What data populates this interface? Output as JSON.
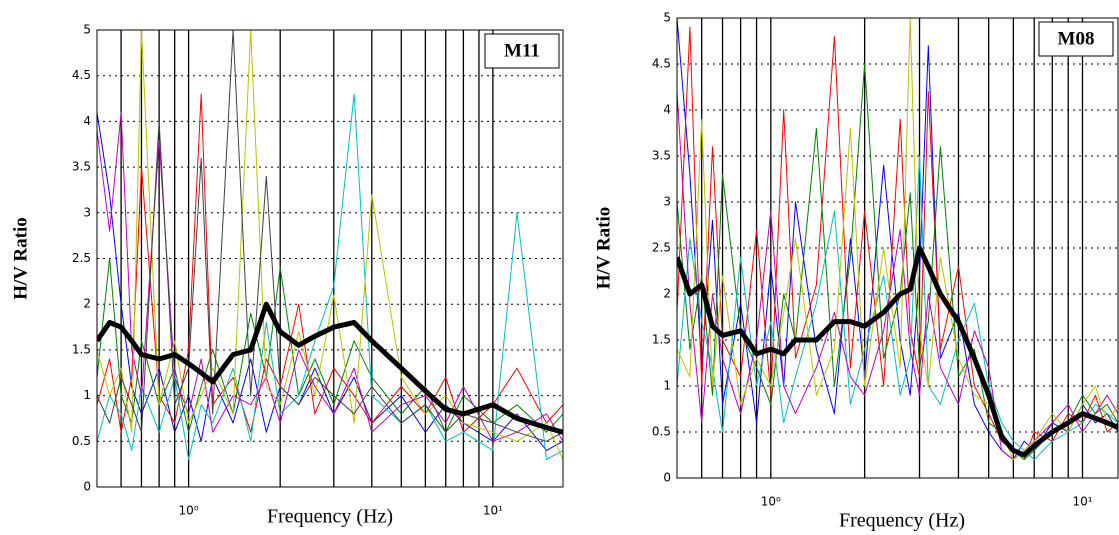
{
  "chart_data": [
    {
      "type": "line",
      "annotation": "M11",
      "xlabel": "Frequency (Hz)",
      "ylabel": "H/V Ratio",
      "log_x": true,
      "grid": true,
      "xlim": [
        0.5,
        17
      ],
      "xticks": [
        {
          "value": 1,
          "label": "10⁰"
        },
        {
          "value": 10,
          "label": "10¹"
        }
      ],
      "xgrid": [
        0.6,
        0.7,
        0.8,
        0.9,
        1,
        2,
        3,
        4,
        5,
        6,
        7,
        8,
        9,
        10
      ],
      "ylim": [
        0,
        5
      ],
      "yticks": [
        0,
        0.5,
        1,
        1.5,
        2,
        2.5,
        3,
        3.5,
        4,
        4.5,
        5
      ],
      "x": [
        0.5,
        0.55,
        0.6,
        0.65,
        0.7,
        0.8,
        0.9,
        1,
        1.1,
        1.2,
        1.4,
        1.6,
        1.8,
        2,
        2.3,
        2.6,
        3,
        3.5,
        4,
        5,
        6,
        7,
        8,
        10,
        12,
        15,
        17
      ],
      "series": [
        {
          "color": "#0000ff",
          "values": [
            4.1,
            3.2,
            2.0,
            1.1,
            0.8,
            1.3,
            0.6,
            1.0,
            0.5,
            1.2,
            0.7,
            1.4,
            0.6,
            1.1,
            0.9,
            1.3,
            0.8,
            1.2,
            0.7,
            1.0,
            0.6,
            0.9,
            0.7,
            0.5,
            0.8,
            0.4,
            0.5
          ]
        },
        {
          "color": "#008000",
          "values": [
            1.2,
            2.5,
            1.0,
            0.7,
            1.6,
            0.9,
            1.3,
            0.6,
            1.1,
            1.5,
            0.8,
            1.9,
            1.2,
            2.4,
            1.0,
            1.4,
            0.9,
            1.6,
            1.2,
            0.8,
            1.1,
            0.6,
            1.0,
            0.7,
            0.9,
            0.6,
            0.8
          ]
        },
        {
          "color": "#ff0000",
          "values": [
            0.9,
            1.4,
            0.6,
            1.2,
            3.5,
            1.0,
            0.7,
            1.5,
            4.3,
            0.9,
            1.2,
            0.6,
            1.4,
            1.1,
            2.0,
            0.8,
            1.3,
            1.0,
            0.7,
            1.1,
            0.8,
            1.2,
            0.6,
            0.9,
            1.3,
            0.7,
            0.9
          ]
        },
        {
          "color": "#00bfbf",
          "values": [
            0.5,
            1.0,
            0.8,
            0.4,
            1.1,
            0.6,
            1.2,
            0.3,
            0.9,
            0.7,
            1.3,
            0.5,
            1.8,
            0.8,
            1.0,
            1.6,
            2.2,
            4.3,
            1.0,
            0.7,
            0.9,
            0.5,
            0.6,
            0.4,
            3.0,
            0.3,
            0.4
          ]
        },
        {
          "color": "#bf00bf",
          "values": [
            3.9,
            2.8,
            4.1,
            1.5,
            1.0,
            3.8,
            1.2,
            0.8,
            1.4,
            0.6,
            1.0,
            0.9,
            1.2,
            0.7,
            1.5,
            1.1,
            0.8,
            1.3,
            0.6,
            0.9,
            1.0,
            0.7,
            1.1,
            0.5,
            0.6,
            0.8,
            0.5
          ]
        },
        {
          "color": "#bfbf00",
          "values": [
            1.5,
            1.0,
            1.3,
            0.6,
            5,
            0.9,
            1.6,
            0.7,
            1.0,
            1.3,
            0.8,
            5,
            1.1,
            0.9,
            1.7,
            1.0,
            2.1,
            0.7,
            3.2,
            1.2,
            0.8,
            1.0,
            0.7,
            0.6,
            0.5,
            0.7,
            0.3
          ]
        },
        {
          "color": "#404040",
          "values": [
            1.0,
            0.7,
            1.2,
            0.9,
            0.6,
            4.0,
            0.9,
            1.3,
            3.6,
            0.8,
            5,
            1.0,
            3.4,
            1.1,
            0.9,
            1.2,
            1.0,
            0.8,
            1.1,
            0.7,
            0.9,
            0.6,
            0.8,
            0.7,
            0.6,
            0.5,
            0.6
          ]
        },
        {
          "color": "#000000",
          "values": [
            1.6,
            1.8,
            1.75,
            1.6,
            1.45,
            1.4,
            1.45,
            1.35,
            1.25,
            1.15,
            1.45,
            1.5,
            2.0,
            1.7,
            1.55,
            1.65,
            1.75,
            1.8,
            1.6,
            1.3,
            1.05,
            0.85,
            0.8,
            0.9,
            0.75,
            0.65,
            0.6
          ]
        }
      ]
    },
    {
      "type": "line",
      "annotation": "M08",
      "xlabel": "Frequency (Hz)",
      "ylabel": "H/V Ratio",
      "log_x": true,
      "grid": true,
      "xlim": [
        0.5,
        13
      ],
      "xticks": [
        {
          "value": 1,
          "label": "10⁰"
        },
        {
          "value": 10,
          "label": "10¹"
        }
      ],
      "xgrid": [
        0.6,
        0.7,
        0.8,
        0.9,
        1,
        2,
        3,
        4,
        5,
        6,
        7,
        8,
        9,
        10
      ],
      "ylim": [
        0,
        5
      ],
      "yticks": [
        0,
        0.5,
        1,
        1.5,
        2,
        2.5,
        3,
        3.5,
        4,
        4.5,
        5
      ],
      "x": [
        0.5,
        0.55,
        0.6,
        0.65,
        0.7,
        0.8,
        0.9,
        1,
        1.1,
        1.2,
        1.4,
        1.6,
        1.8,
        2,
        2.3,
        2.6,
        2.8,
        3,
        3.2,
        3.5,
        4,
        4.5,
        5,
        5.5,
        6,
        6.5,
        7,
        8,
        9,
        10,
        11,
        12,
        13
      ],
      "series": [
        {
          "color": "#0000ff",
          "values": [
            5,
            3.3,
            1.2,
            2.8,
            0.8,
            1.9,
            0.6,
            2.3,
            1.0,
            3.0,
            1.4,
            0.7,
            2.6,
            1.1,
            3.4,
            1.5,
            0.9,
            2.2,
            4.7,
            1.3,
            1.8,
            0.8,
            0.5,
            0.3,
            0.2,
            0.4,
            0.3,
            0.6,
            0.5,
            0.8,
            0.6,
            0.7,
            0.5
          ]
        },
        {
          "color": "#ff0000",
          "values": [
            1.8,
            4.9,
            1.0,
            3.6,
            1.5,
            1.1,
            2.7,
            0.9,
            4.0,
            1.3,
            2.1,
            4.8,
            1.2,
            2.9,
            1.0,
            3.9,
            1.6,
            1.1,
            4.2,
            1.4,
            2.3,
            1.0,
            0.7,
            0.4,
            0.3,
            0.2,
            0.5,
            0.4,
            0.7,
            0.6,
            0.9,
            0.5,
            0.6
          ]
        },
        {
          "color": "#008000",
          "values": [
            3.0,
            1.4,
            2.2,
            0.9,
            3.3,
            1.6,
            1.2,
            0.8,
            2.0,
            1.5,
            3.8,
            1.0,
            2.4,
            4.5,
            1.3,
            2.0,
            3.1,
            1.2,
            1.7,
            3.6,
            1.1,
            1.4,
            0.6,
            0.5,
            0.3,
            0.2,
            0.3,
            0.5,
            0.6,
            0.9,
            0.7,
            0.8,
            0.6
          ]
        },
        {
          "color": "#00bfbf",
          "values": [
            1.0,
            2.6,
            1.7,
            1.2,
            0.5,
            2.4,
            1.0,
            1.7,
            0.6,
            1.1,
            1.9,
            2.9,
            0.8,
            1.4,
            2.2,
            0.9,
            1.3,
            3.5,
            1.0,
            0.8,
            1.5,
            1.9,
            1.0,
            0.6,
            0.4,
            0.3,
            0.2,
            0.4,
            0.5,
            0.6,
            0.8,
            0.7,
            0.6
          ]
        },
        {
          "color": "#bf00bf",
          "values": [
            4.2,
            1.9,
            0.6,
            2.0,
            1.3,
            0.7,
            1.5,
            2.9,
            1.0,
            0.7,
            1.2,
            1.8,
            1.1,
            0.9,
            1.6,
            2.7,
            1.4,
            0.9,
            2.0,
            1.2,
            0.8,
            1.6,
            1.2,
            0.3,
            0.2,
            0.3,
            0.4,
            0.6,
            0.8,
            0.5,
            0.7,
            0.9,
            0.7
          ]
        },
        {
          "color": "#bfbf00",
          "values": [
            1.4,
            1.1,
            3.9,
            1.0,
            2.2,
            0.8,
            1.3,
            1.0,
            1.8,
            2.6,
            0.9,
            1.4,
            3.8,
            1.0,
            2.5,
            1.2,
            5,
            1.6,
            1.0,
            2.4,
            1.3,
            0.9,
            0.8,
            0.5,
            0.2,
            0.3,
            0.4,
            0.7,
            0.5,
            0.8,
            1.0,
            0.6,
            0.8
          ]
        },
        {
          "color": "#000000",
          "values": [
            2.4,
            2.0,
            2.1,
            1.65,
            1.55,
            1.6,
            1.35,
            1.4,
            1.35,
            1.5,
            1.5,
            1.7,
            1.7,
            1.65,
            1.8,
            2.0,
            2.05,
            2.5,
            2.3,
            2.0,
            1.7,
            1.3,
            0.9,
            0.45,
            0.3,
            0.25,
            0.35,
            0.5,
            0.6,
            0.7,
            0.65,
            0.6,
            0.55
          ]
        }
      ]
    }
  ]
}
